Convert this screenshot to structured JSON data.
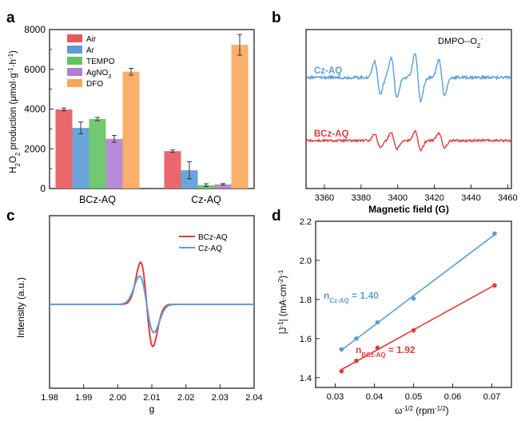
{
  "colors": {
    "axis": "#222222",
    "air": "#e8585c",
    "ar": "#5b9bd5",
    "tempo": "#62c462",
    "agno3": "#b07fd0",
    "dfo": "#f9a65a",
    "red": "#e43a3a",
    "blue": "#5a9fd4"
  },
  "chart_data": [
    {
      "panel_label": "a",
      "type": "bar",
      "ylabel_parts": [
        "H",
        "2",
        "O",
        "2",
        " production (μmol·g",
        "-1",
        "·h",
        "-1",
        ")"
      ],
      "ylim": [
        0,
        8000
      ],
      "yticks": [
        "0",
        "2000",
        "4000",
        "6000",
        "8000"
      ],
      "ytick_values": [
        0,
        2000,
        4000,
        6000,
        8000
      ],
      "categories": [
        "BCz-AQ",
        "Cz-AQ"
      ],
      "series": [
        {
          "name": "Air",
          "legend_label": "Air",
          "color_key": "air",
          "values": [
            3980,
            1880
          ],
          "errors": [
            70,
            60
          ]
        },
        {
          "name": "Ar",
          "legend_label": "Ar",
          "color_key": "ar",
          "values": [
            3050,
            920
          ],
          "errors": [
            300,
            430
          ]
        },
        {
          "name": "TEMPO",
          "legend_label": "TEMPO",
          "color_key": "tempo",
          "values": [
            3500,
            170
          ],
          "errors": [
            80,
            70
          ]
        },
        {
          "name": "AgNO3",
          "legend_parts": [
            "AgNO",
            "3"
          ],
          "color_key": "agno3",
          "values": [
            2500,
            210
          ],
          "errors": [
            170,
            40
          ]
        },
        {
          "name": "DFO",
          "legend_label": "DFO",
          "color_key": "dfo",
          "values": [
            5880,
            7230
          ],
          "errors": [
            170,
            520
          ]
        }
      ]
    },
    {
      "panel_label": "b",
      "type": "line",
      "title_parts": [
        "DMPO--O",
        "2",
        "-"
      ],
      "xlabel": "Magnetic field (G)",
      "xlim": [
        3350,
        3462
      ],
      "xticks": [
        "3360",
        "3380",
        "3400",
        "3420",
        "3440",
        "3460"
      ],
      "xtick_values": [
        3360,
        3380,
        3400,
        3420,
        3440,
        3460
      ],
      "series": [
        {
          "name": "Cz-AQ",
          "color_key": "blue",
          "baseline": 10,
          "amplitude": 1.0
        },
        {
          "name": "BCz-AQ",
          "color_key": "red",
          "baseline": 0,
          "amplitude": 0.5
        }
      ],
      "peak_centers": [
        3389,
        3398,
        3411,
        3424
      ]
    },
    {
      "panel_label": "c",
      "type": "line",
      "xlabel": "g",
      "ylabel": "Intensity (a.u.)",
      "xlim": [
        1.98,
        2.04
      ],
      "xticks": [
        "1.98",
        "1.99",
        "2.00",
        "2.01",
        "2.02",
        "2.03",
        "2.04"
      ],
      "xtick_values": [
        1.98,
        1.99,
        2.0,
        2.01,
        2.02,
        2.03,
        2.04
      ],
      "center_g": 2.0085,
      "series": [
        {
          "name": "BCz-AQ",
          "color_key": "red",
          "amplitude": 1.0,
          "width": 0.0018
        },
        {
          "name": "Cz-AQ",
          "color_key": "blue",
          "amplitude": 0.67,
          "width": 0.0021
        }
      ]
    },
    {
      "panel_label": "d",
      "type": "scatter",
      "xlabel_parts": [
        "ω",
        "-1/2",
        " (rpm",
        "-1/2",
        ")"
      ],
      "ylabel_parts": [
        "|J",
        "-1",
        "| (mA·cm",
        "-2",
        ")",
        "-1"
      ],
      "xlim": [
        0.025,
        0.075
      ],
      "ylim": [
        1.35,
        2.2
      ],
      "xticks": [
        "0.03",
        "0.04",
        "0.05",
        "0.06",
        "0.07"
      ],
      "xtick_values": [
        0.03,
        0.04,
        0.05,
        0.06,
        0.07
      ],
      "yticks": [
        "1.4",
        "1.6",
        "1.8",
        "2.0",
        "2.2"
      ],
      "ytick_values": [
        1.4,
        1.6,
        1.8,
        2.0,
        2.2
      ],
      "series": [
        {
          "name": "Cz-AQ",
          "color_key": "blue",
          "x": [
            0.0316,
            0.0354,
            0.0408,
            0.05,
            0.0707
          ],
          "y": [
            1.545,
            1.6,
            1.683,
            1.805,
            2.137
          ],
          "annotation_parts": [
            "n",
            "Cz-AQ",
            " = 1.40"
          ]
        },
        {
          "name": "BCz-AQ",
          "color_key": "red",
          "x": [
            0.0316,
            0.0354,
            0.0408,
            0.05,
            0.0707
          ],
          "y": [
            1.433,
            1.486,
            1.553,
            1.642,
            1.872
          ],
          "annotation_parts": [
            "n",
            "BCz-AQ",
            " = 1.92"
          ]
        }
      ]
    }
  ]
}
